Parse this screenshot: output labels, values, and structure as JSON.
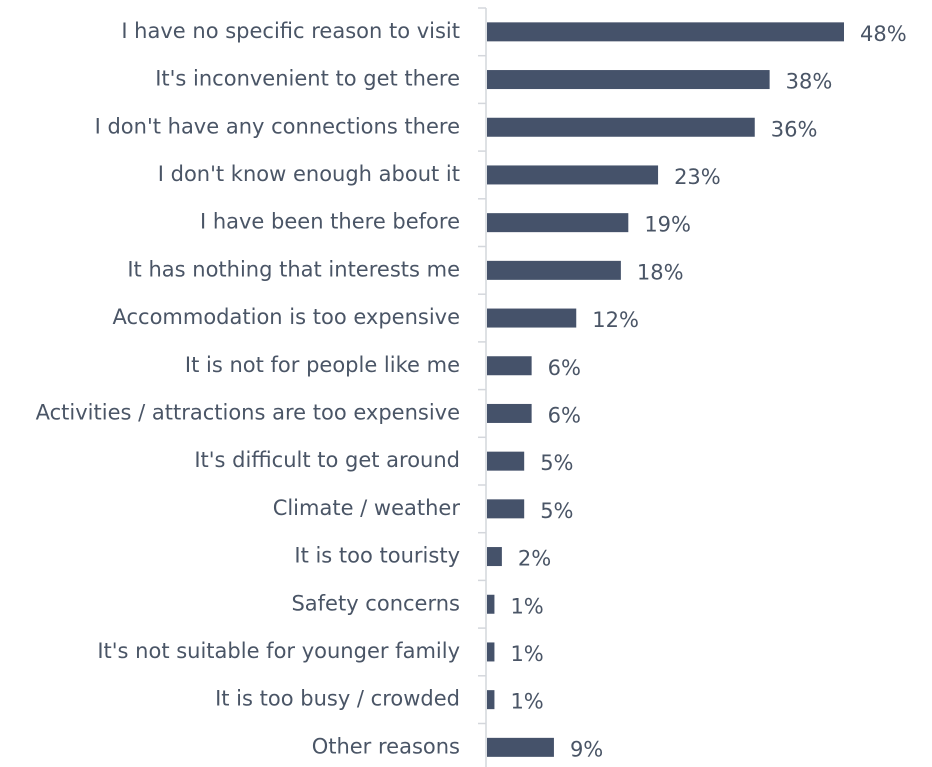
{
  "colors": {
    "bar": "#45526a",
    "text": "#4a5566",
    "axis": "#d4d7dc"
  },
  "chart_data": {
    "type": "bar",
    "orientation": "horizontal",
    "title": "",
    "xlabel": "",
    "ylabel": "",
    "xlim": [
      0,
      48
    ],
    "grid": false,
    "legend": "none",
    "unit": "%",
    "categories": [
      "I have no specific reason to visit",
      "It's inconvenient to get there",
      "I don't have any connections there",
      "I don't know enough about it",
      "I have been there before",
      "It has nothing that interests me",
      "Accommodation is too expensive",
      "It is not for people like me",
      "Activities / attractions are too expensive",
      "It's difficult to get around",
      "Climate / weather",
      "It is too touristy",
      "Safety concerns",
      "It's not suitable for younger family",
      "It is too busy / crowded",
      "Other reasons"
    ],
    "values": [
      48,
      38,
      36,
      23,
      19,
      18,
      12,
      6,
      6,
      5,
      5,
      2,
      1,
      1,
      1,
      9
    ],
    "value_labels": [
      "48%",
      "38%",
      "36%",
      "23%",
      "19%",
      "18%",
      "12%",
      "6%",
      "6%",
      "5%",
      "5%",
      "2%",
      "1%",
      "1%",
      "1%",
      "9%"
    ]
  }
}
